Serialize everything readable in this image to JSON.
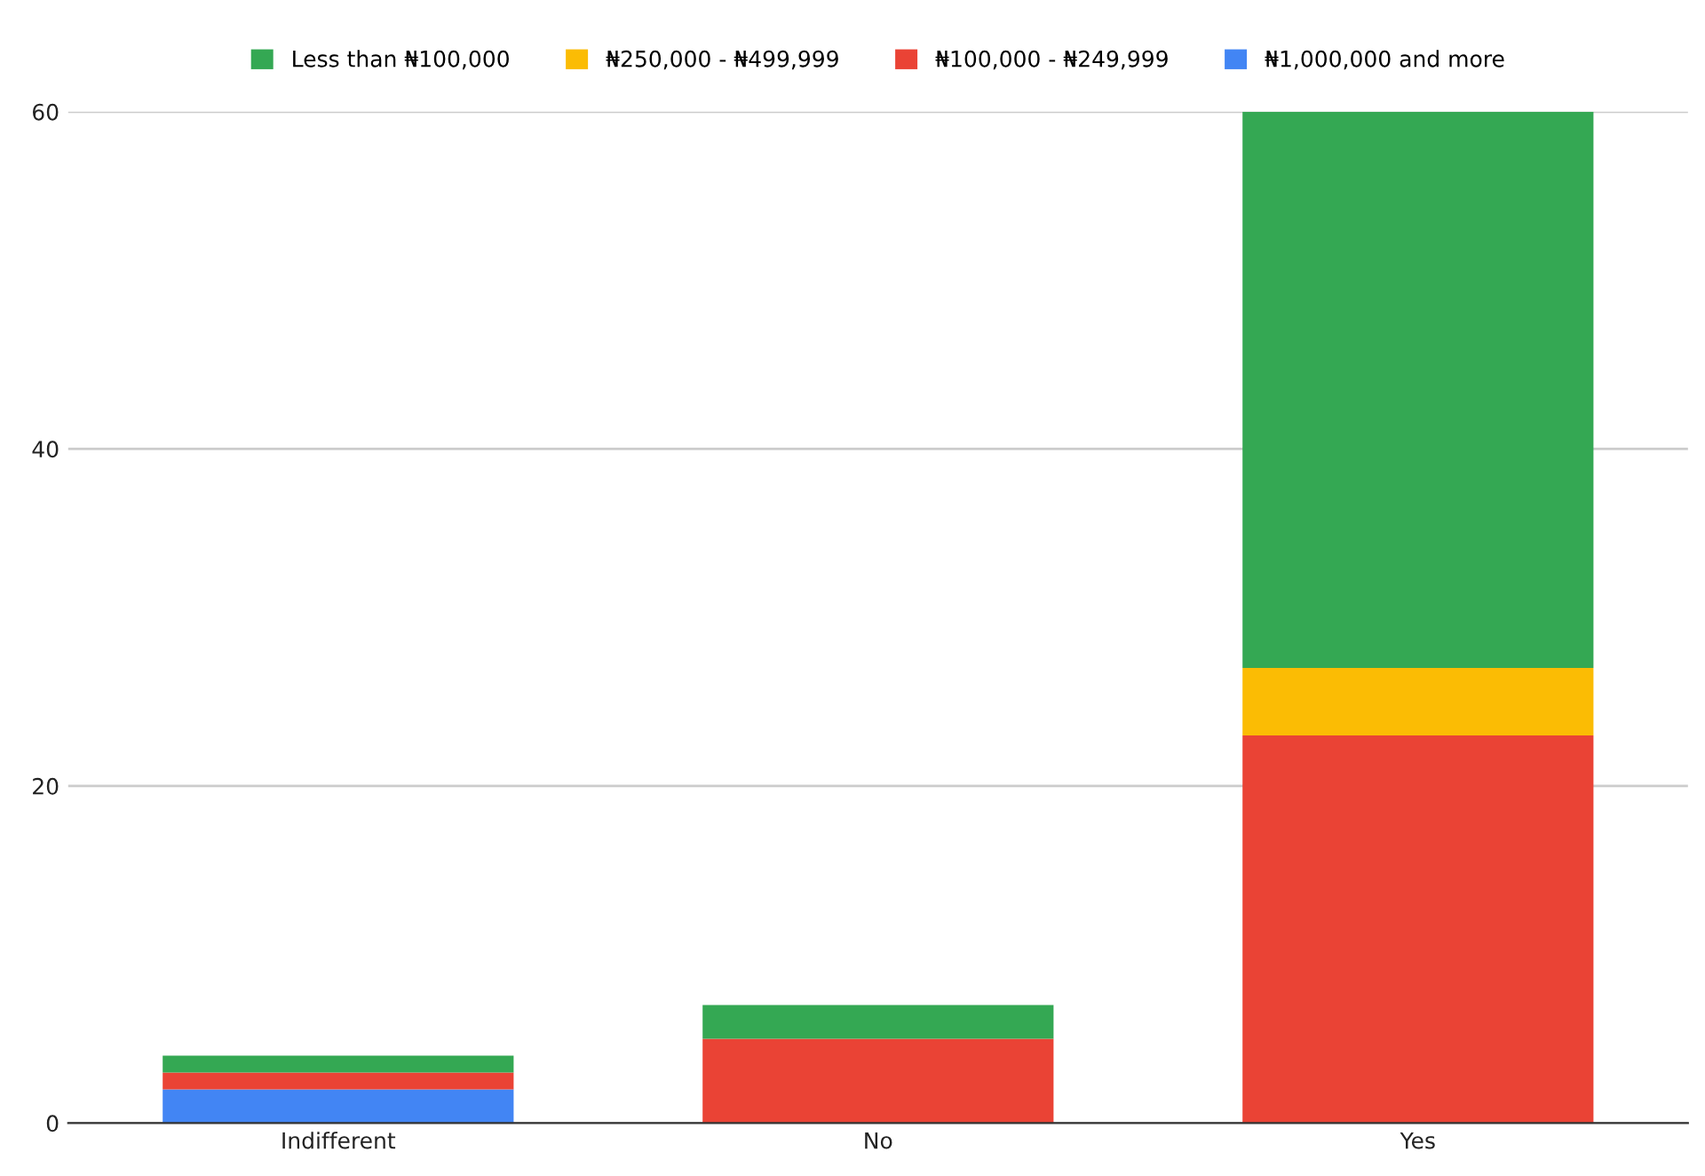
{
  "chart_data": {
    "type": "bar",
    "stacked": true,
    "categories": [
      "Indifferent",
      "No",
      "Yes"
    ],
    "series": [
      {
        "name": "₦1,000,000 and more",
        "color": "#4285f4",
        "values": [
          2,
          0,
          0
        ]
      },
      {
        "name": "₦100,000 - ₦249,999",
        "color": "#ea4335",
        "values": [
          1,
          5,
          23
        ]
      },
      {
        "name": "₦250,000 - ₦499,999",
        "color": "#fbbc04",
        "values": [
          0,
          0,
          4
        ]
      },
      {
        "name": "Less than ₦100,000",
        "color": "#34a853",
        "values": [
          1,
          2,
          33
        ]
      }
    ],
    "ylim": [
      0,
      60
    ],
    "yticks": [
      0,
      20,
      40,
      60
    ],
    "grid": "y",
    "legend": "top"
  }
}
